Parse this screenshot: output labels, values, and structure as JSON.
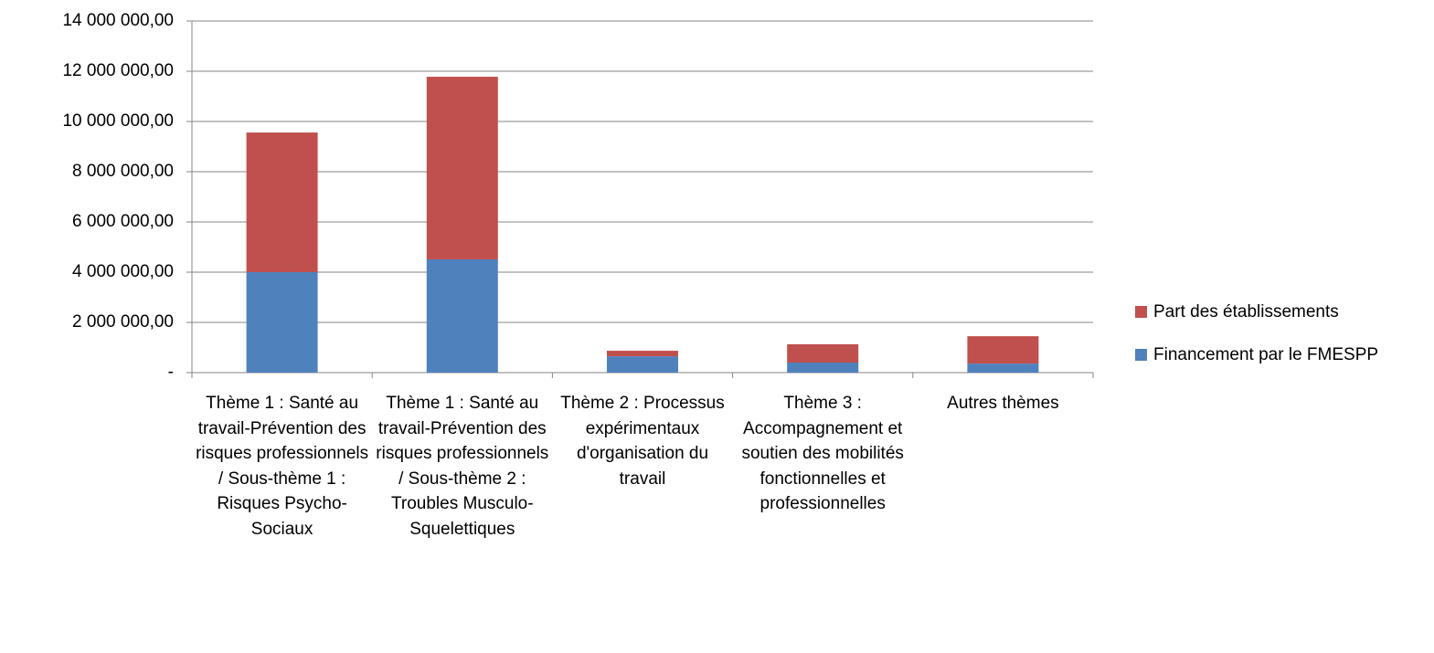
{
  "chart_data": {
    "type": "stacked-bar",
    "categories": [
      "Thème 1 : Santé au travail-Prévention des risques professionnels / Sous-thème 1 : Risques Psycho-Sociaux",
      "Thème 1 : Santé au travail-Prévention des risques professionnels / Sous-thème 2 : Troubles Musculo-Squelettiques",
      "Thème 2 : Processus expérimentaux d'organisation du travail",
      "Thème 3 : Accompagnement et soutien des mobilités fonctionnelles et professionnelles",
      "Autres thèmes"
    ],
    "series": [
      {
        "name": "Financement par le FMESPP",
        "color": "#4f81bd",
        "values": [
          4000000,
          4510000,
          650000,
          400000,
          360000
        ]
      },
      {
        "name": "Part des établissements",
        "color": "#c0504d",
        "values": [
          5560000,
          7270000,
          220000,
          730000,
          1090000
        ]
      }
    ],
    "ylim": [
      0,
      14000000
    ],
    "yticks": [
      {
        "value": 0,
        "label": "-"
      },
      {
        "value": 2000000,
        "label": "2 000 000,00"
      },
      {
        "value": 4000000,
        "label": "4 000 000,00"
      },
      {
        "value": 6000000,
        "label": "6 000 000,00"
      },
      {
        "value": 8000000,
        "label": "8 000 000,00"
      },
      {
        "value": 10000000,
        "label": "10 000 000,00"
      },
      {
        "value": 12000000,
        "label": "12 000 000,00"
      },
      {
        "value": 14000000,
        "label": "14 000 000,00"
      }
    ],
    "grid": true,
    "legend": "right"
  }
}
